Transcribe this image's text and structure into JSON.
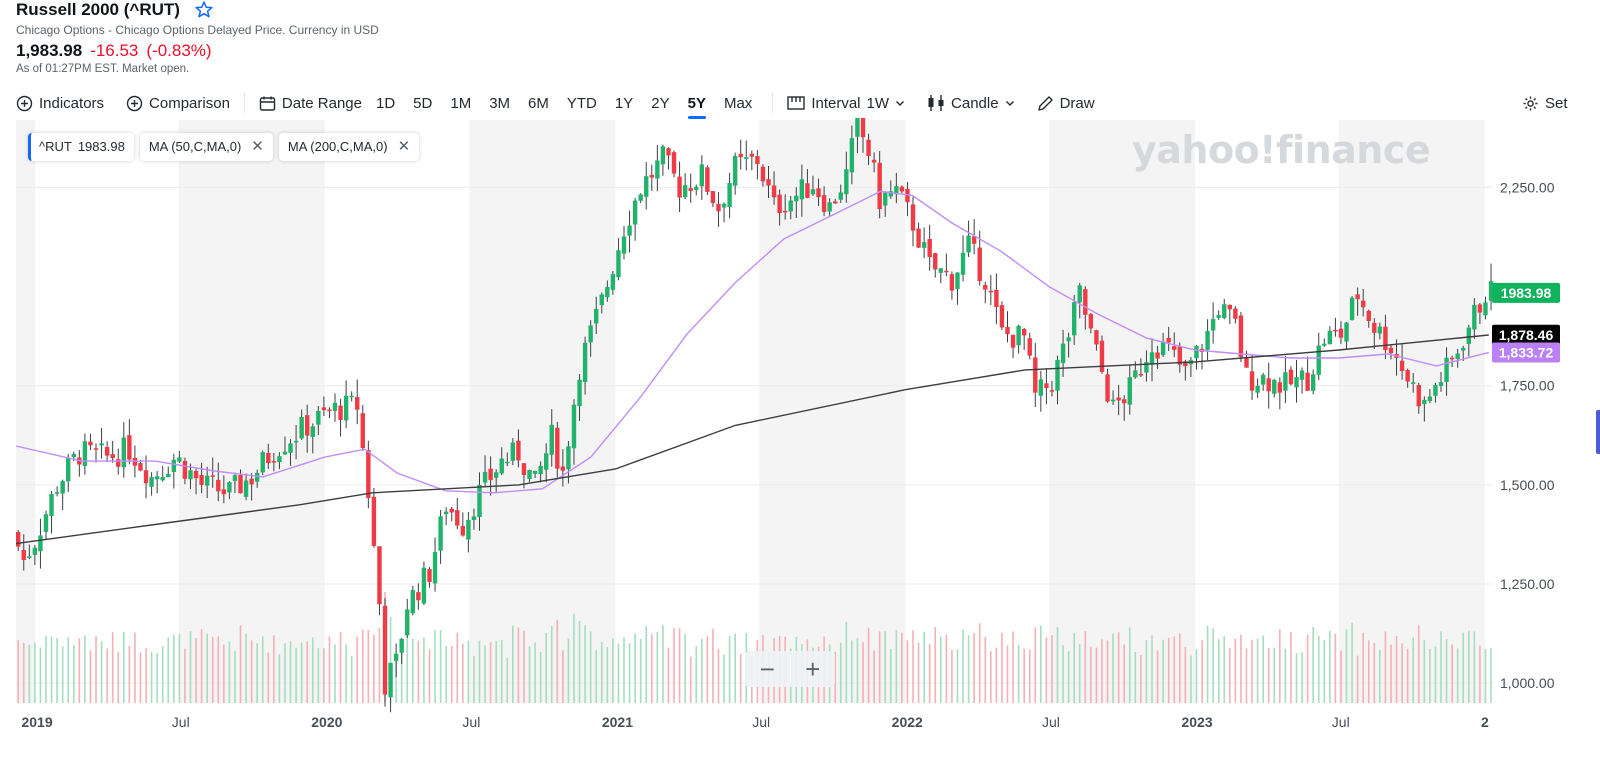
{
  "header": {
    "title": "Russell 2000 (^RUT)",
    "subtitle": "Chicago Options - Chicago Options Delayed Price. Currency in USD",
    "price": "1,983.98",
    "change": "-16.53",
    "change_pct": "(-0.83%)",
    "as_of": "As of 01:27PM EST. Market open."
  },
  "toolbar": {
    "indicators_label": "Indicators",
    "comparison_label": "Comparison",
    "date_range_label": "Date Range",
    "ranges": [
      "1D",
      "5D",
      "1M",
      "3M",
      "6M",
      "YTD",
      "1Y",
      "2Y",
      "5Y",
      "Max"
    ],
    "active_range": "5Y",
    "interval_label": "Interval",
    "interval_value": "1W",
    "chart_type_label": "Candle",
    "draw_label": "Draw",
    "settings_label": "Set"
  },
  "legend": {
    "main_symbol": "^RUT",
    "main_value": "1983.98",
    "ma50_label": "MA (50,C,MA,0)",
    "ma200_label": "MA (200,C,MA,0)"
  },
  "watermark": "yahoo!finance",
  "zoom": {
    "minus": "−",
    "plus": "+"
  },
  "colors": {
    "up": "#21b26b",
    "down": "#ef3b45",
    "ma50": "#c18cf7",
    "ma200": "#3d3d3d",
    "accent": "#0f69ff",
    "negative_text": "#eb0f29"
  },
  "chart_data": {
    "type": "candlestick",
    "y_axis": {
      "ylim": [
        950,
        2420
      ],
      "ticks": [
        1000,
        1250,
        1500,
        1750,
        2250
      ],
      "tick_labels": [
        "1,000.00",
        "1,250.00",
        "1,500.00",
        "1,750.00",
        "2,250.00"
      ],
      "position": "right"
    },
    "x_axis": {
      "range": [
        "2018-12-08",
        "2024-01-10"
      ],
      "ticks": [
        {
          "date": "2019-01-01",
          "label": "2019",
          "bold": true
        },
        {
          "date": "2019-07-01",
          "label": "Jul",
          "bold": false
        },
        {
          "date": "2020-01-01",
          "label": "2020",
          "bold": true
        },
        {
          "date": "2020-07-01",
          "label": "Jul",
          "bold": false
        },
        {
          "date": "2021-01-01",
          "label": "2021",
          "bold": true
        },
        {
          "date": "2021-07-01",
          "label": "Jul",
          "bold": false
        },
        {
          "date": "2022-01-01",
          "label": "2022",
          "bold": true
        },
        {
          "date": "2022-07-01",
          "label": "Jul",
          "bold": false
        },
        {
          "date": "2023-01-01",
          "label": "2023",
          "bold": true
        },
        {
          "date": "2023-07-01",
          "label": "Jul",
          "bold": false
        },
        {
          "date": "2024-01-01",
          "label": "2",
          "bold": true
        }
      ]
    },
    "price_path": [
      [
        "2018-12-08",
        1380
      ],
      [
        "2018-12-22",
        1310
      ],
      [
        "2019-01-05",
        1360
      ],
      [
        "2019-02-02",
        1500
      ],
      [
        "2019-03-02",
        1580
      ],
      [
        "2019-04-06",
        1570
      ],
      [
        "2019-05-04",
        1590
      ],
      [
        "2019-06-01",
        1520
      ],
      [
        "2019-07-01",
        1570
      ],
      [
        "2019-08-03",
        1500
      ],
      [
        "2019-09-07",
        1480
      ],
      [
        "2019-10-05",
        1520
      ],
      [
        "2019-11-02",
        1590
      ],
      [
        "2019-12-14",
        1650
      ],
      [
        "2020-01-18",
        1690
      ],
      [
        "2020-02-15",
        1700
      ],
      [
        "2020-02-29",
        1480
      ],
      [
        "2020-03-14",
        1200
      ],
      [
        "2020-03-21",
        1000
      ],
      [
        "2020-04-04",
        1050
      ],
      [
        "2020-04-18",
        1200
      ],
      [
        "2020-05-16",
        1280
      ],
      [
        "2020-06-06",
        1450
      ],
      [
        "2020-06-27",
        1400
      ],
      [
        "2020-07-18",
        1480
      ],
      [
        "2020-08-15",
        1560
      ],
      [
        "2020-09-05",
        1580
      ],
      [
        "2020-09-26",
        1500
      ],
      [
        "2020-10-17",
        1620
      ],
      [
        "2020-10-31",
        1530
      ],
      [
        "2020-11-21",
        1800
      ],
      [
        "2020-12-19",
        1960
      ],
      [
        "2021-01-16",
        2150
      ],
      [
        "2021-02-06",
        2250
      ],
      [
        "2021-03-06",
        2320
      ],
      [
        "2021-03-27",
        2250
      ],
      [
        "2021-04-24",
        2280
      ],
      [
        "2021-05-15",
        2200
      ],
      [
        "2021-06-05",
        2300
      ],
      [
        "2021-07-03",
        2320
      ],
      [
        "2021-07-24",
        2200
      ],
      [
        "2021-08-21",
        2230
      ],
      [
        "2021-09-11",
        2260
      ],
      [
        "2021-10-02",
        2200
      ],
      [
        "2021-10-23",
        2280
      ],
      [
        "2021-11-06",
        2410
      ],
      [
        "2021-11-20",
        2340
      ],
      [
        "2021-12-04",
        2220
      ],
      [
        "2021-12-25",
        2240
      ],
      [
        "2022-01-15",
        2160
      ],
      [
        "2022-02-05",
        2050
      ],
      [
        "2022-03-05",
        2020
      ],
      [
        "2022-03-26",
        2100
      ],
      [
        "2022-04-16",
        2020
      ],
      [
        "2022-05-07",
        1880
      ],
      [
        "2022-06-04",
        1870
      ],
      [
        "2022-06-18",
        1720
      ],
      [
        "2022-07-09",
        1760
      ],
      [
        "2022-07-30",
        1880
      ],
      [
        "2022-08-13",
        1980
      ],
      [
        "2022-09-03",
        1830
      ],
      [
        "2022-09-24",
        1690
      ],
      [
        "2022-10-15",
        1740
      ],
      [
        "2022-11-12",
        1860
      ],
      [
        "2022-12-03",
        1840
      ],
      [
        "2022-12-24",
        1780
      ],
      [
        "2023-01-21",
        1880
      ],
      [
        "2023-02-04",
        1950
      ],
      [
        "2023-02-25",
        1900
      ],
      [
        "2023-03-11",
        1770
      ],
      [
        "2023-04-01",
        1770
      ],
      [
        "2023-04-29",
        1750
      ],
      [
        "2023-05-27",
        1770
      ],
      [
        "2023-06-17",
        1870
      ],
      [
        "2023-07-08",
        1880
      ],
      [
        "2023-07-29",
        1980
      ],
      [
        "2023-08-19",
        1900
      ],
      [
        "2023-09-09",
        1850
      ],
      [
        "2023-09-30",
        1770
      ],
      [
        "2023-10-21",
        1700
      ],
      [
        "2023-11-04",
        1750
      ],
      [
        "2023-11-25",
        1810
      ],
      [
        "2023-12-16",
        1900
      ],
      [
        "2024-01-06",
        1984
      ]
    ],
    "ma50": [
      [
        "2018-12-08",
        1598
      ],
      [
        "2019-03-01",
        1560
      ],
      [
        "2019-06-01",
        1560
      ],
      [
        "2019-08-15",
        1535
      ],
      [
        "2019-10-15",
        1520
      ],
      [
        "2020-01-01",
        1570
      ],
      [
        "2020-02-20",
        1590
      ],
      [
        "2020-04-01",
        1530
      ],
      [
        "2020-06-01",
        1485
      ],
      [
        "2020-08-01",
        1480
      ],
      [
        "2020-10-01",
        1490
      ],
      [
        "2020-12-01",
        1570
      ],
      [
        "2021-02-01",
        1720
      ],
      [
        "2021-04-01",
        1880
      ],
      [
        "2021-06-01",
        2010
      ],
      [
        "2021-08-01",
        2120
      ],
      [
        "2021-10-01",
        2180
      ],
      [
        "2021-12-01",
        2240
      ],
      [
        "2022-01-10",
        2230
      ],
      [
        "2022-03-01",
        2160
      ],
      [
        "2022-05-01",
        2090
      ],
      [
        "2022-07-01",
        2000
      ],
      [
        "2022-09-01",
        1930
      ],
      [
        "2022-11-01",
        1870
      ],
      [
        "2023-01-01",
        1840
      ],
      [
        "2023-03-01",
        1830
      ],
      [
        "2023-05-01",
        1820
      ],
      [
        "2023-07-01",
        1820
      ],
      [
        "2023-09-01",
        1830
      ],
      [
        "2023-11-01",
        1800
      ],
      [
        "2024-01-06",
        1834
      ]
    ],
    "ma200": [
      [
        "2018-12-08",
        1352
      ],
      [
        "2019-06-01",
        1400
      ],
      [
        "2019-12-01",
        1450
      ],
      [
        "2020-03-01",
        1480
      ],
      [
        "2020-09-01",
        1500
      ],
      [
        "2021-01-01",
        1540
      ],
      [
        "2021-06-01",
        1650
      ],
      [
        "2022-01-01",
        1740
      ],
      [
        "2022-06-01",
        1790
      ],
      [
        "2023-01-01",
        1810
      ],
      [
        "2023-07-01",
        1840
      ],
      [
        "2024-01-06",
        1878
      ]
    ],
    "price_tags": [
      {
        "value": 1983.98,
        "label": "1983.98",
        "color": "#0fb35c"
      },
      {
        "value": 1878.46,
        "label": "1,878.46",
        "color": "#000000"
      },
      {
        "value": 1833.72,
        "label": "1,833.72",
        "color": "#b980f7"
      }
    ],
    "volume_baseline": 955
  }
}
